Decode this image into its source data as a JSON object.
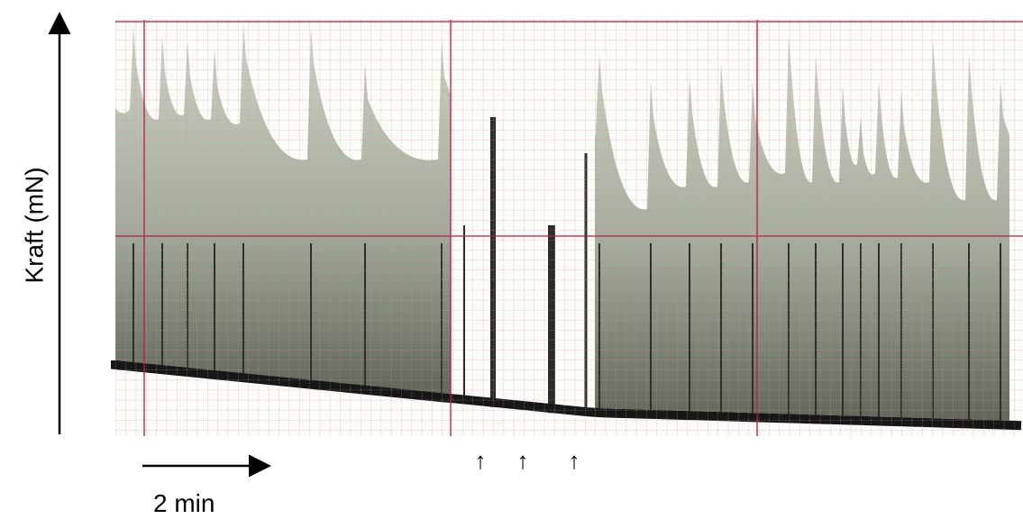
{
  "axis_label": "Kraft (mN)",
  "scale_bar": "2 min",
  "markers": [
    "↑",
    "↑",
    "↑"
  ]
}
